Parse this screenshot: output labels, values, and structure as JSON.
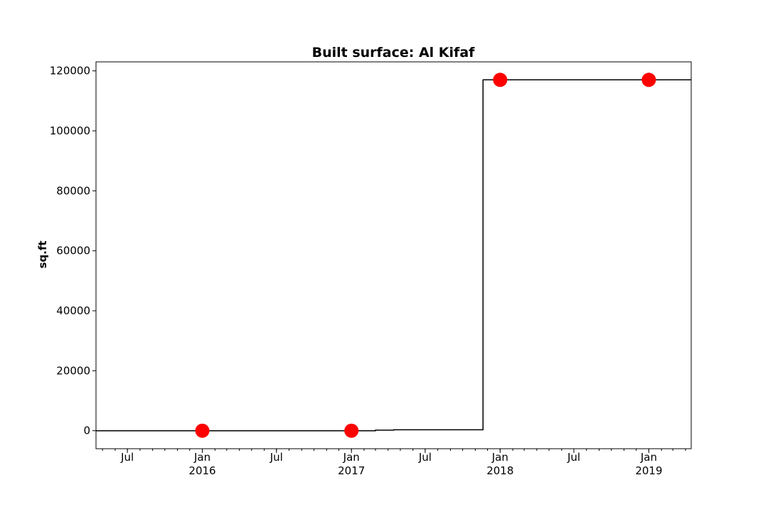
{
  "chart_data": {
    "type": "line",
    "title": "Built surface: Al Kifaf",
    "xlabel": "",
    "ylabel": "sq.ft",
    "xlim": [
      "2015-04-15",
      "2019-04-15"
    ],
    "ylim": [
      -6000,
      123000
    ],
    "y_ticks": [
      0,
      20000,
      40000,
      60000,
      80000,
      100000,
      120000
    ],
    "y_tick_labels": [
      "0",
      "20000",
      "40000",
      "60000",
      "80000",
      "100000",
      "120000"
    ],
    "x_ticks": [
      {
        "date": "2015-07-01",
        "label": "Jul",
        "sublabel": ""
      },
      {
        "date": "2016-01-01",
        "label": "Jan",
        "sublabel": "2016"
      },
      {
        "date": "2016-07-01",
        "label": "Jul",
        "sublabel": ""
      },
      {
        "date": "2017-01-01",
        "label": "Jan",
        "sublabel": "2017"
      },
      {
        "date": "2017-07-01",
        "label": "Jul",
        "sublabel": ""
      },
      {
        "date": "2018-01-01",
        "label": "Jan",
        "sublabel": "2018"
      },
      {
        "date": "2018-07-01",
        "label": "Jul",
        "sublabel": ""
      },
      {
        "date": "2019-01-01",
        "label": "Jan",
        "sublabel": "2019"
      }
    ],
    "grid": false,
    "line_color": "#000000",
    "marker_color": "#ff0000",
    "series": [
      {
        "kind": "step",
        "x": [
          "2015-04-15",
          "2017-03-01",
          "2017-04-15",
          "2017-11-20",
          "2019-04-15"
        ],
        "y": [
          0,
          200,
          300,
          117000,
          117000
        ]
      },
      {
        "kind": "markers",
        "x": [
          "2016-01-01",
          "2017-01-01",
          "2018-01-01",
          "2019-01-01"
        ],
        "y": [
          0,
          0,
          117000,
          117000
        ]
      }
    ]
  }
}
